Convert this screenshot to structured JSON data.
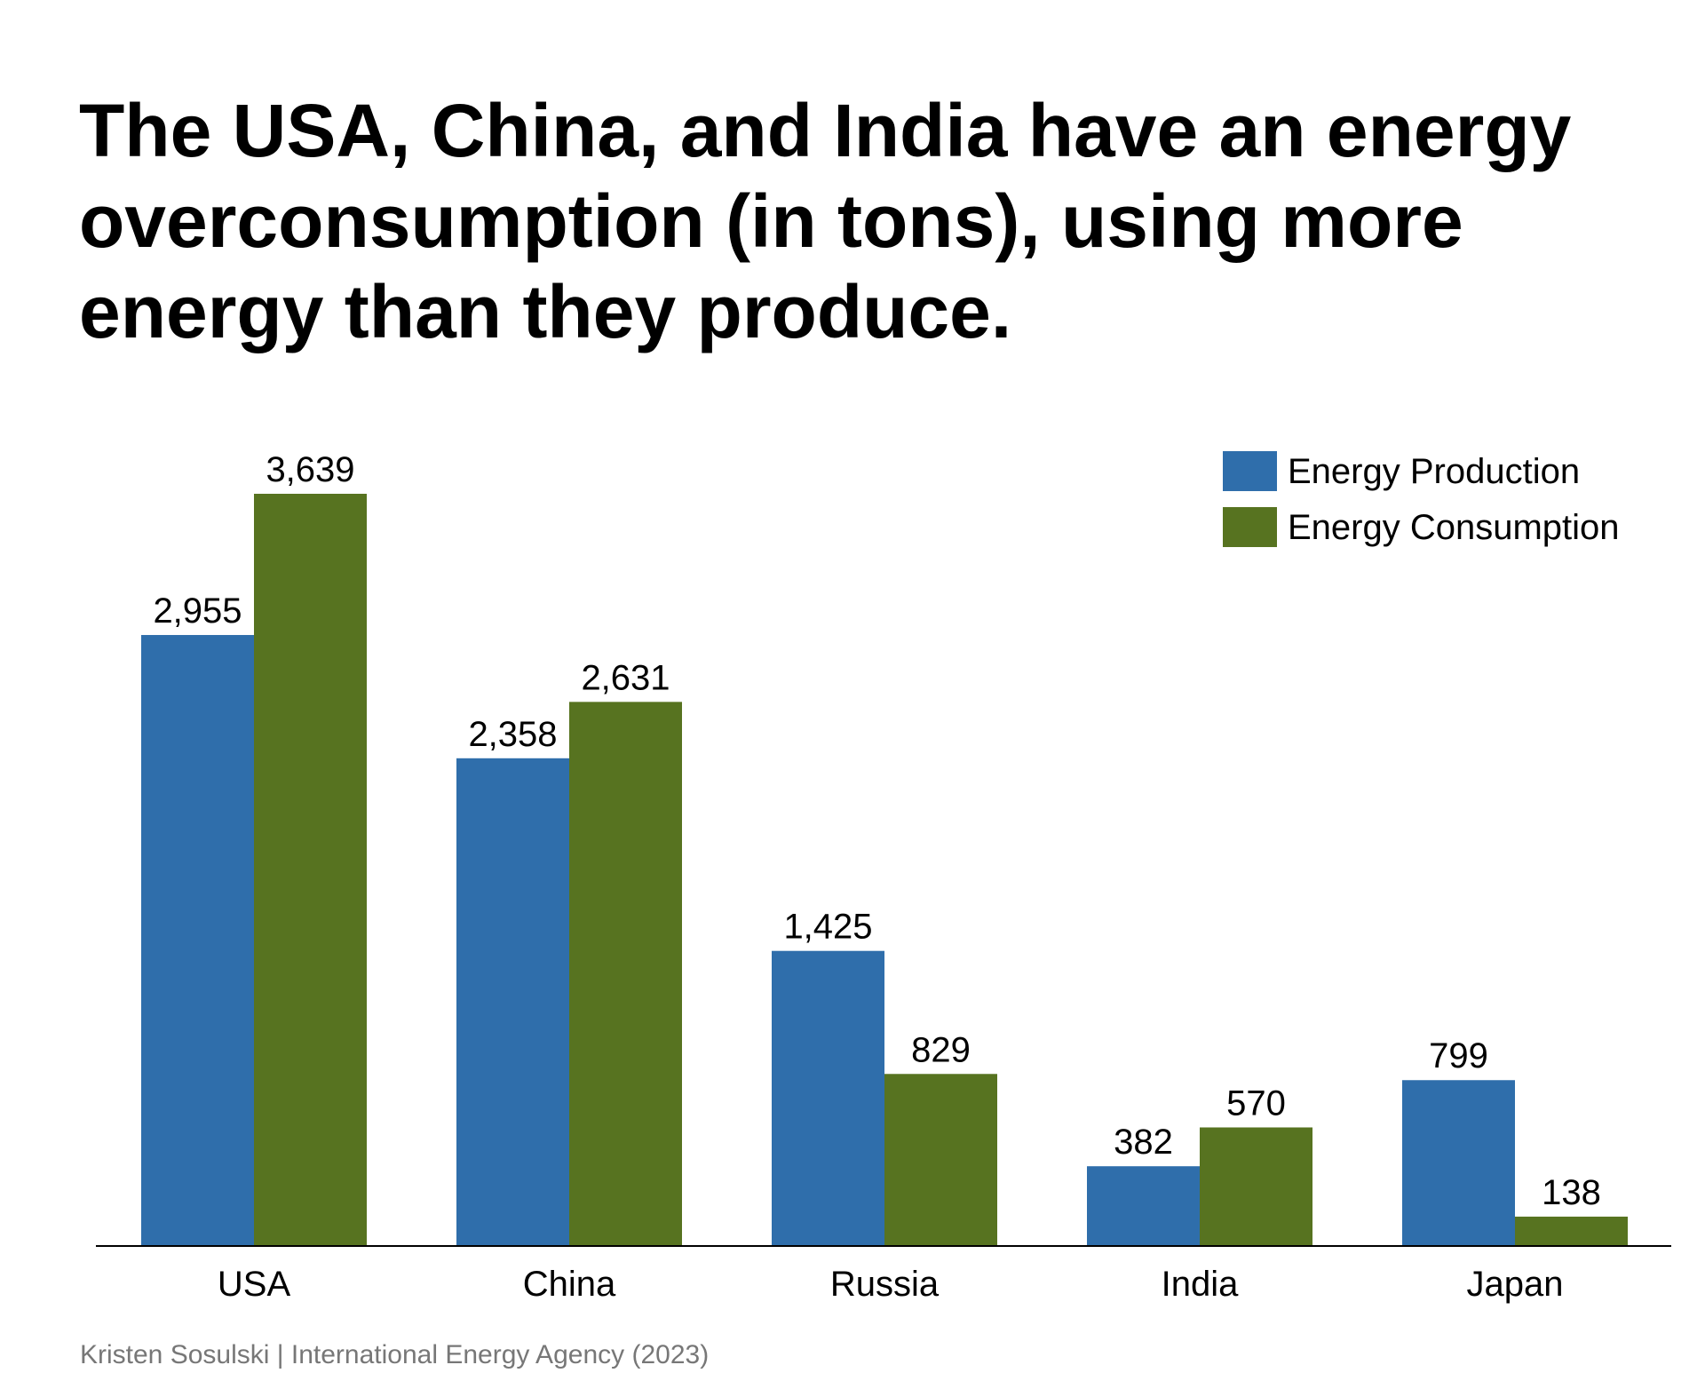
{
  "chart_data": {
    "type": "bar",
    "title": "The USA, China, and India have an energy overconsumption (in tons), using more energy than they produce.",
    "categories": [
      "USA",
      "China",
      "Russia",
      "India",
      "Japan"
    ],
    "series": [
      {
        "name": "Energy Production",
        "color": "#2f6eab",
        "values": [
          2955,
          2358,
          1425,
          382,
          799
        ],
        "labels": [
          "2,955",
          "2,358",
          "1,425",
          "382",
          "799"
        ]
      },
      {
        "name": "Energy Consumption",
        "color": "#577320",
        "values": [
          3639,
          2631,
          829,
          570,
          138
        ],
        "labels": [
          "3,639",
          "2,631",
          "829",
          "570",
          "138"
        ]
      }
    ],
    "ylim": [
      0,
      3900
    ],
    "grid": false,
    "y_axis_shown": false,
    "legend_position": "top-right",
    "source": "Kristen Sosulski | International Energy Agency (2023)"
  }
}
